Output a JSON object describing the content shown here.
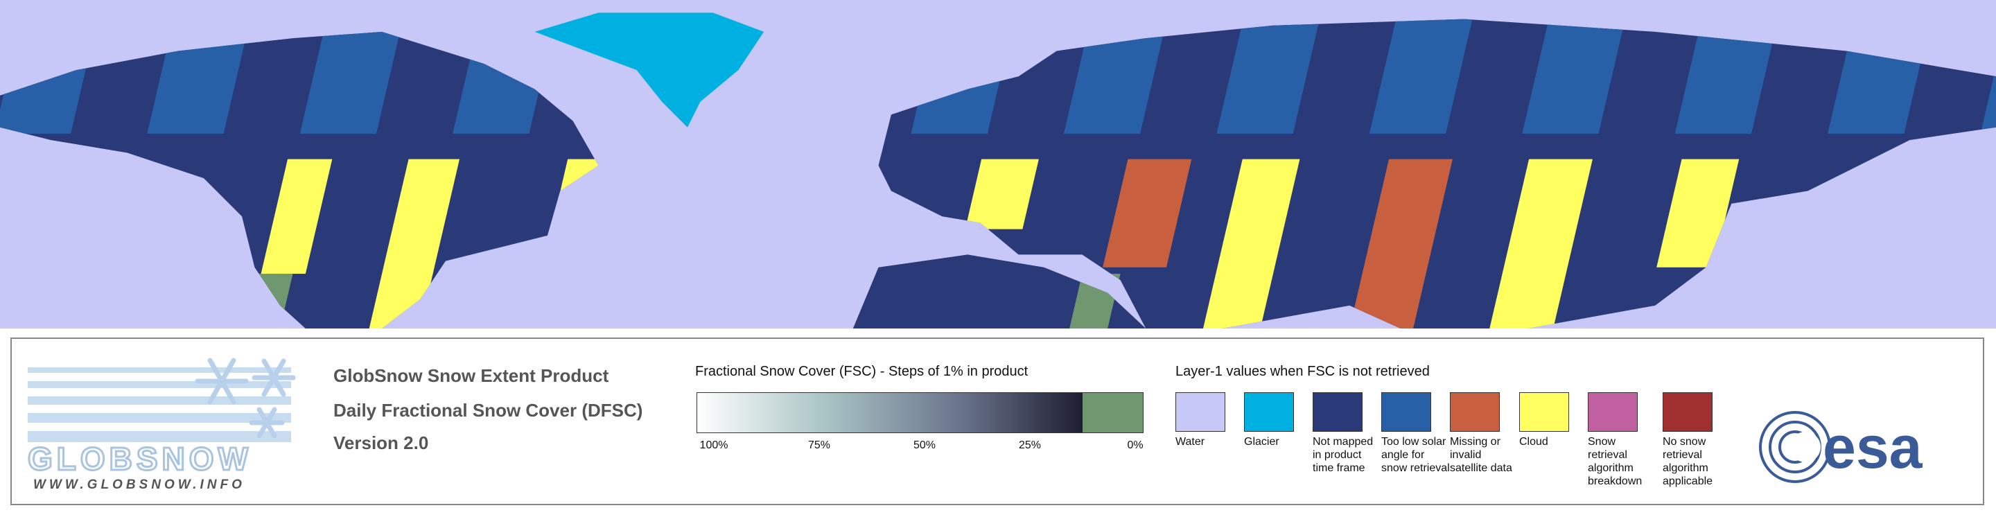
{
  "product": {
    "lines": [
      "GlobSnow Snow Extent Product",
      "Daily Fractional Snow Cover (DFSC)",
      "Version 2.0"
    ]
  },
  "logo": {
    "name": "GLOBSNOW",
    "url": "WWW.GLOBSNOW.INFO"
  },
  "fsc_legend": {
    "title": "Fractional Snow Cover (FSC) - Steps of 1% in product",
    "labels": [
      "100%",
      "75%",
      "50%",
      "25%",
      "0%"
    ],
    "gradient_colors": [
      "#ffffff",
      "#a8c4c4",
      "#6e7890",
      "#1e1e32"
    ],
    "snow_free_color": "#709870"
  },
  "layer1_legend": {
    "title": "Layer-1 values when FSC is not retrieved",
    "items": [
      {
        "label": "Water",
        "color": "#c8c8f8"
      },
      {
        "label": "Glacier",
        "color": "#00b0e0"
      },
      {
        "label": "Not mapped in product time frame",
        "color": "#2a3a78"
      },
      {
        "label": "Too low solar angle for snow retrieval",
        "color": "#2860a8"
      },
      {
        "label": "Missing or invalid satellite data",
        "color": "#c86040"
      },
      {
        "label": "Cloud",
        "color": "#ffff60"
      },
      {
        "label": "Snow retrieval algorithm breakdown",
        "color": "#c060a0"
      },
      {
        "label": "No snow retrieval algorithm applicable",
        "color": "#a03030"
      }
    ]
  },
  "agency_logo": {
    "name": "esa"
  }
}
